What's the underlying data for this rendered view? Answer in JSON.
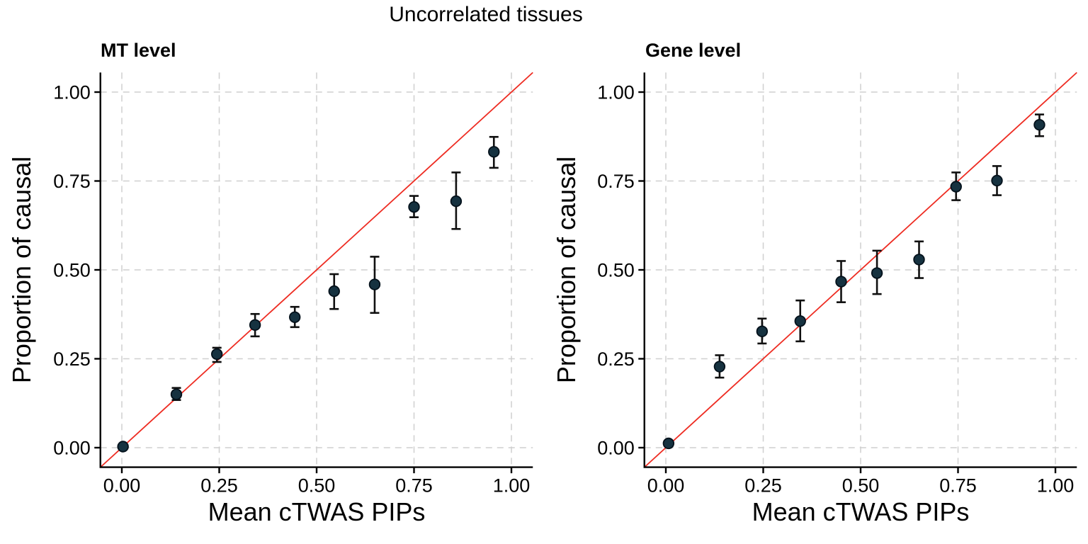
{
  "figure": {
    "title": "Uncorrelated tissues",
    "background": "#ffffff"
  },
  "axes": {
    "x_label": "Mean cTWAS PIPs",
    "y_label": "Proportion of causal",
    "x_tick_labels": [
      "0.00",
      "0.25",
      "0.50",
      "0.75",
      "1.00"
    ],
    "y_tick_labels": [
      "0.00",
      "0.25",
      "0.50",
      "0.75",
      "1.00"
    ]
  },
  "colors": {
    "point_fill": "#163240",
    "point_stroke": "#04111b",
    "error_bar": "#101010",
    "identity_line": "#ee2c22",
    "gridline": "#cfcfcf",
    "axis": "#000000",
    "text": "#000000"
  },
  "chart_data": [
    {
      "type": "scatter",
      "title": "MT level",
      "xlabel": "Mean cTWAS PIPs",
      "ylabel": "Proportion of causal",
      "xlim": [
        -0.055,
        1.055
      ],
      "ylim": [
        -0.055,
        1.055
      ],
      "grid": "major-dashed",
      "legend": "none",
      "reference_line": "y = x (red)",
      "points": [
        {
          "x": 0.003,
          "y": 0.003,
          "lo": null,
          "hi": null
        },
        {
          "x": 0.14,
          "y": 0.15,
          "lo": 0.134,
          "hi": 0.168
        },
        {
          "x": 0.244,
          "y": 0.263,
          "lo": 0.241,
          "hi": 0.281
        },
        {
          "x": 0.342,
          "y": 0.345,
          "lo": 0.313,
          "hi": 0.376
        },
        {
          "x": 0.444,
          "y": 0.367,
          "lo": 0.339,
          "hi": 0.396
        },
        {
          "x": 0.545,
          "y": 0.44,
          "lo": 0.39,
          "hi": 0.488
        },
        {
          "x": 0.649,
          "y": 0.459,
          "lo": 0.379,
          "hi": 0.537
        },
        {
          "x": 0.75,
          "y": 0.677,
          "lo": 0.648,
          "hi": 0.708
        },
        {
          "x": 0.858,
          "y": 0.693,
          "lo": 0.615,
          "hi": 0.774
        },
        {
          "x": 0.955,
          "y": 0.832,
          "lo": 0.787,
          "hi": 0.874
        }
      ]
    },
    {
      "type": "scatter",
      "title": "Gene level",
      "xlabel": "Mean cTWAS PIPs",
      "ylabel": "Proportion of causal",
      "xlim": [
        -0.055,
        1.055
      ],
      "ylim": [
        -0.055,
        1.055
      ],
      "grid": "major-dashed",
      "legend": "none",
      "reference_line": "y = x (red)",
      "points": [
        {
          "x": 0.007,
          "y": 0.012,
          "lo": null,
          "hi": null
        },
        {
          "x": 0.138,
          "y": 0.228,
          "lo": 0.197,
          "hi": 0.26
        },
        {
          "x": 0.247,
          "y": 0.327,
          "lo": 0.293,
          "hi": 0.363
        },
        {
          "x": 0.345,
          "y": 0.356,
          "lo": 0.299,
          "hi": 0.414
        },
        {
          "x": 0.45,
          "y": 0.467,
          "lo": 0.409,
          "hi": 0.525
        },
        {
          "x": 0.542,
          "y": 0.491,
          "lo": 0.432,
          "hi": 0.554
        },
        {
          "x": 0.65,
          "y": 0.529,
          "lo": 0.477,
          "hi": 0.58
        },
        {
          "x": 0.745,
          "y": 0.734,
          "lo": 0.696,
          "hi": 0.774
        },
        {
          "x": 0.85,
          "y": 0.751,
          "lo": 0.71,
          "hi": 0.792
        },
        {
          "x": 0.959,
          "y": 0.908,
          "lo": 0.876,
          "hi": 0.937
        }
      ]
    }
  ]
}
